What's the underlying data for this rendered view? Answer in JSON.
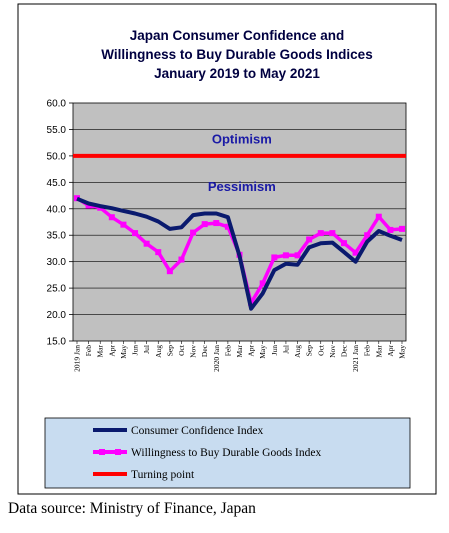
{
  "chart_data": {
    "type": "line",
    "title_lines": [
      "Japan Consumer Confidence and",
      "Willingness to Buy Durable Goods Indices",
      "January 2019 to May 2021"
    ],
    "x": [
      "2019 Jan",
      "Feb",
      "Mar",
      "Apr",
      "May",
      "Jun",
      "Jul",
      "Aug",
      "Sep",
      "Oct",
      "Nov",
      "Dec",
      "2020 Jan",
      "Feb",
      "Mar",
      "Apr",
      "May",
      "Jun",
      "Jul",
      "Aug",
      "Sep",
      "Oct",
      "Nov",
      "Dec",
      "2021 Jan",
      "Feb",
      "Mar",
      "Apr",
      "May"
    ],
    "ylim": [
      15,
      60
    ],
    "yticks": [
      "15.0",
      "20.0",
      "25.0",
      "30.0",
      "35.0",
      "40.0",
      "45.0",
      "50.0",
      "55.0",
      "60.0"
    ],
    "grid": true,
    "series": [
      {
        "name": "Consumer Confidence Index",
        "color": "#0a1a6e",
        "values": [
          41.9,
          41.0,
          40.5,
          40.1,
          39.6,
          39.1,
          38.5,
          37.6,
          36.2,
          36.5,
          38.8,
          39.1,
          39.1,
          38.4,
          31.1,
          21.1,
          24.0,
          28.4,
          29.6,
          29.4,
          32.7,
          33.5,
          33.6,
          31.8,
          30.0,
          33.8,
          35.8,
          34.9,
          34.1
        ]
      },
      {
        "name": "Willingness to Buy Durable Goods Index",
        "color": "#ff00ff",
        "values": [
          42.0,
          40.6,
          40.2,
          38.4,
          37.0,
          35.4,
          33.4,
          31.8,
          28.2,
          30.4,
          35.5,
          37.1,
          37.3,
          36.6,
          31.3,
          22.2,
          25.9,
          30.8,
          31.2,
          31.2,
          34.2,
          35.4,
          35.4,
          33.5,
          31.7,
          35.0,
          38.5,
          36.0,
          36.2
        ]
      },
      {
        "name": "Turning point",
        "color": "#ff0000",
        "constant": 50
      }
    ],
    "annotations": [
      {
        "text": "Optimism",
        "x_index": 14.2,
        "y": 52.3
      },
      {
        "text": "Pessimism",
        "x_index": 14.2,
        "y": 43.4
      }
    ],
    "legend": {
      "placement": "bottom",
      "entries": [
        "Consumer Confidence Index",
        "Willingness to Buy Durable Goods Index",
        "Turning point"
      ]
    }
  },
  "colors": {
    "plot_background": "#c0c0c0",
    "legend_background": "#c8dcf0",
    "annotation_text": "#1a1aa6"
  },
  "source_note": "Data source: Ministry of Finance, Japan"
}
